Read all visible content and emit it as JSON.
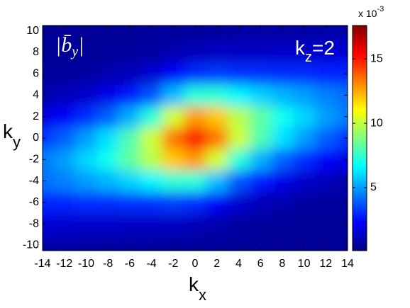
{
  "chart_data": {
    "type": "heatmap",
    "annotation_left": {
      "main": "|b̄",
      "sub": "y",
      "end": "|"
    },
    "annotation_right": {
      "main": "k",
      "sub": "z",
      "end": "=2"
    },
    "xlabel": {
      "main": "k",
      "sub": "x"
    },
    "ylabel": {
      "main": "k",
      "sub": "y"
    },
    "colorbar_label": {
      "main": "x 10",
      "sup": "-3"
    },
    "x": [
      -14,
      -12,
      -10,
      -8,
      -6,
      -4,
      -2,
      0,
      2,
      4,
      6,
      8,
      10,
      12,
      14
    ],
    "y": [
      -10,
      -8,
      -6,
      -4,
      -2,
      0,
      2,
      4,
      6,
      8,
      10
    ],
    "z": [
      [
        0.8,
        0.8,
        0.7,
        0.7,
        0.7,
        0.7,
        0.6,
        0.6,
        0.6,
        0.5,
        0.5,
        0.5,
        0.5,
        0.5,
        0.5
      ],
      [
        1.6,
        1.5,
        1.4,
        1.4,
        1.3,
        1.3,
        1.3,
        1.1,
        0.9,
        0.7,
        0.6,
        0.6,
        0.5,
        0.5,
        0.5
      ],
      [
        2.9,
        2.9,
        3.0,
        3.0,
        3.1,
        3.1,
        3.3,
        3.0,
        2.2,
        1.5,
        1.1,
        0.9,
        0.7,
        0.6,
        0.6
      ],
      [
        4.2,
        4.5,
        5.0,
        5.4,
        5.9,
        6.5,
        7.4,
        7.3,
        5.5,
        3.7,
        2.6,
        1.9,
        1.4,
        1.1,
        0.9
      ],
      [
        4.4,
        5.0,
        6.0,
        6.9,
        8.3,
        9.8,
        12.0,
        12.8,
        10.3,
        7.3,
        5.3,
        3.9,
        3.0,
        2.2,
        1.8
      ],
      [
        3.2,
        3.9,
        5.0,
        6.2,
        8.0,
        10.2,
        13.4,
        15.5,
        13.4,
        10.2,
        8.0,
        6.2,
        5.0,
        3.9,
        3.2
      ],
      [
        1.8,
        2.2,
        3.0,
        3.9,
        5.3,
        7.3,
        10.3,
        12.8,
        12.0,
        9.8,
        8.3,
        6.9,
        6.0,
        5.0,
        4.4
      ],
      [
        0.9,
        1.1,
        1.4,
        1.9,
        2.6,
        3.7,
        5.5,
        7.3,
        7.4,
        6.5,
        5.9,
        5.4,
        5.0,
        4.5,
        4.2
      ],
      [
        0.6,
        0.6,
        0.7,
        0.9,
        1.1,
        1.5,
        2.2,
        3.0,
        3.3,
        3.1,
        3.1,
        3.0,
        3.0,
        2.9,
        2.9
      ],
      [
        0.5,
        0.5,
        0.5,
        0.6,
        0.6,
        0.7,
        0.9,
        1.1,
        1.3,
        1.3,
        1.3,
        1.4,
        1.4,
        1.5,
        1.6
      ],
      [
        0.5,
        0.5,
        0.5,
        0.5,
        0.5,
        0.6,
        0.6,
        0.6,
        0.6,
        0.7,
        0.7,
        0.7,
        0.7,
        0.8,
        0.8
      ]
    ],
    "xlim": [
      -14,
      14
    ],
    "ylim": [
      -10.5,
      10.5
    ],
    "xticks": [
      -14,
      -12,
      -10,
      -8,
      -6,
      -4,
      -2,
      0,
      2,
      4,
      6,
      8,
      10,
      12,
      14
    ],
    "yticks": [
      -10,
      -8,
      -6,
      -4,
      -2,
      0,
      2,
      4,
      6,
      8,
      10
    ],
    "zlim": [
      0.1,
      17.6
    ],
    "zticks": [
      5,
      10,
      15
    ],
    "colormap": "jet"
  }
}
